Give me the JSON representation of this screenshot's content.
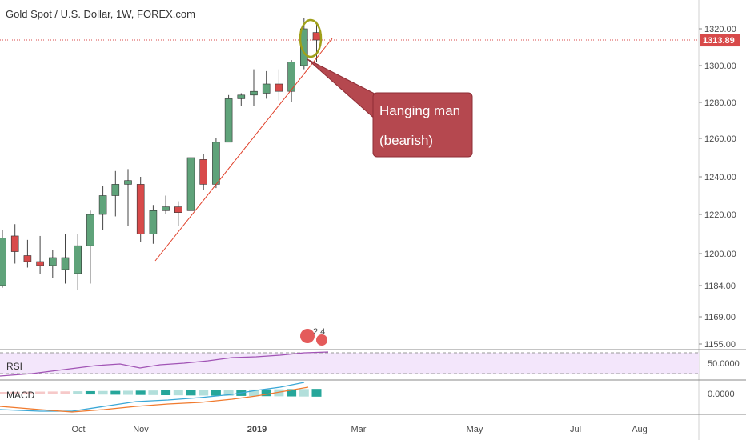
{
  "title": "Gold Spot / U.S. Dollar, 1W, FOREX.com",
  "colors": {
    "up": "#5fa37a",
    "down": "#d84a4a",
    "trendline": "#e0402a",
    "circle": "#a0a01a",
    "callout_fill": "#b5484f",
    "callout_border": "#8e2d35",
    "price_tag": "#d84a4a",
    "rsi_band": "#f3e6fb",
    "rsi_line": "#a154b5",
    "macd_line": "#3aa7d6",
    "signal_line": "#f07a2e"
  },
  "chart_data": {
    "type": "candlestick",
    "timeframe": "1W",
    "symbol": "Gold Spot / U.S. Dollar",
    "y_ticks": [
      "1320.00",
      "1300.00",
      "1280.00",
      "1260.00",
      "1240.00",
      "1220.00",
      "1200.00",
      "1184.00",
      "1169.00",
      "1155.00"
    ],
    "x_ticks": [
      "Oct",
      "Nov",
      "2019",
      "Mar",
      "May",
      "Jul",
      "Aug"
    ],
    "last_price": "1313.89",
    "candles": [
      {
        "o": 1184,
        "h": 1212,
        "l": 1183,
        "c": 1208
      },
      {
        "o": 1209,
        "h": 1215,
        "l": 1195,
        "c": 1201
      },
      {
        "o": 1199,
        "h": 1207,
        "l": 1193,
        "c": 1196
      },
      {
        "o": 1196,
        "h": 1209,
        "l": 1190,
        "c": 1194
      },
      {
        "o": 1194,
        "h": 1202,
        "l": 1188,
        "c": 1198
      },
      {
        "o": 1192,
        "h": 1210,
        "l": 1185,
        "c": 1198
      },
      {
        "o": 1190,
        "h": 1210,
        "l": 1182,
        "c": 1204
      },
      {
        "o": 1204,
        "h": 1222,
        "l": 1185,
        "c": 1220
      },
      {
        "o": 1220,
        "h": 1235,
        "l": 1212,
        "c": 1230
      },
      {
        "o": 1230,
        "h": 1243,
        "l": 1219,
        "c": 1236
      },
      {
        "o": 1236,
        "h": 1244,
        "l": 1214,
        "c": 1238
      },
      {
        "o": 1236,
        "h": 1240,
        "l": 1206,
        "c": 1210
      },
      {
        "o": 1210,
        "h": 1225,
        "l": 1205,
        "c": 1222
      },
      {
        "o": 1222,
        "h": 1230,
        "l": 1220,
        "c": 1224
      },
      {
        "o": 1224,
        "h": 1227,
        "l": 1214,
        "c": 1221
      },
      {
        "o": 1222,
        "h": 1252,
        "l": 1220,
        "c": 1250
      },
      {
        "o": 1249,
        "h": 1252,
        "l": 1233,
        "c": 1236
      },
      {
        "o": 1236,
        "h": 1260,
        "l": 1234,
        "c": 1258
      },
      {
        "o": 1258,
        "h": 1284,
        "l": 1258,
        "c": 1282
      },
      {
        "o": 1282,
        "h": 1285,
        "l": 1278,
        "c": 1284
      },
      {
        "o": 1284,
        "h": 1298,
        "l": 1278,
        "c": 1286
      },
      {
        "o": 1285,
        "h": 1297,
        "l": 1282,
        "c": 1290
      },
      {
        "o": 1290,
        "h": 1298,
        "l": 1281,
        "c": 1286
      },
      {
        "o": 1286,
        "h": 1303,
        "l": 1280,
        "c": 1302
      },
      {
        "o": 1300,
        "h": 1326,
        "l": 1298,
        "c": 1320
      },
      {
        "o": 1318,
        "h": 1324,
        "l": 1302,
        "c": 1313.89
      }
    ],
    "annotations": {
      "callout_line1": "Hanging man",
      "callout_line2": "(bearish)",
      "events_badge": "2 4"
    },
    "rsi": {
      "label": "RSI",
      "level": "50.0000"
    },
    "macd": {
      "label": "MACD",
      "level": "0.0000"
    }
  }
}
